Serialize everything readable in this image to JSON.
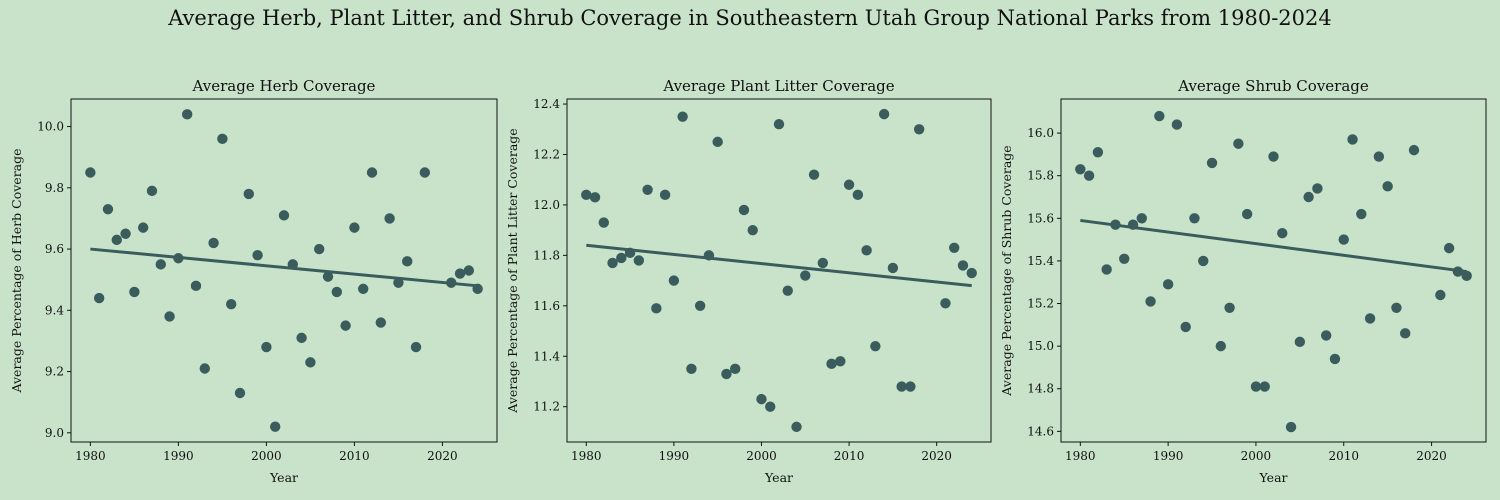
{
  "suptitle": "Average Herb, Plant Litter, and Shrub Coverage in Southeastern Utah Group National Parks from 1980-2024",
  "colors": {
    "background": "#c9e3cb",
    "marker": "#3a5c5c",
    "trend": "#3a5c5c",
    "axes": "#111111"
  },
  "chart_data": [
    {
      "type": "scatter",
      "title": "Average Herb Coverage",
      "xlabel": "Year",
      "ylabel": "Average Percentage of Herb Coverage",
      "xlim": [
        1977.8,
        2026.2
      ],
      "ylim": [
        8.97,
        10.09
      ],
      "xticks": [
        1980,
        1990,
        2000,
        2010,
        2020
      ],
      "yticks": [
        9.0,
        9.2,
        9.4,
        9.6,
        9.8,
        10.0
      ],
      "x": [
        1980,
        1981,
        1982,
        1983,
        1984,
        1985,
        1986,
        1987,
        1988,
        1989,
        1990,
        1991,
        1992,
        1993,
        1994,
        1995,
        1996,
        1997,
        1998,
        1999,
        2000,
        2001,
        2002,
        2003,
        2004,
        2005,
        2006,
        2007,
        2008,
        2009,
        2010,
        2011,
        2012,
        2013,
        2014,
        2015,
        2016,
        2017,
        2018,
        2021,
        2022,
        2023,
        2024
      ],
      "y": [
        9.85,
        9.44,
        9.73,
        9.63,
        9.65,
        9.46,
        9.67,
        9.79,
        9.55,
        9.38,
        9.57,
        10.04,
        9.48,
        9.21,
        9.62,
        9.96,
        9.42,
        9.13,
        9.78,
        9.58,
        9.28,
        9.02,
        9.71,
        9.55,
        9.31,
        9.23,
        9.6,
        9.51,
        9.46,
        9.35,
        9.67,
        9.47,
        9.85,
        9.36,
        9.7,
        9.49,
        9.56,
        9.28,
        9.85,
        9.49,
        9.52,
        9.53,
        9.47
      ],
      "trend": [
        [
          1980,
          9.6
        ],
        [
          2024,
          9.48
        ]
      ]
    },
    {
      "type": "scatter",
      "title": "Average Plant Litter Coverage",
      "xlabel": "Year",
      "ylabel": "Average Percentage of Plant Litter Coverage",
      "xlim": [
        1977.8,
        2026.2
      ],
      "ylim": [
        11.06,
        12.42
      ],
      "xticks": [
        1980,
        1990,
        2000,
        2010,
        2020
      ],
      "yticks": [
        11.2,
        11.4,
        11.6,
        11.8,
        12.0,
        12.2,
        12.4
      ],
      "x": [
        1980,
        1981,
        1982,
        1983,
        1984,
        1985,
        1986,
        1987,
        1988,
        1989,
        1990,
        1991,
        1992,
        1993,
        1994,
        1995,
        1996,
        1997,
        1998,
        1999,
        2000,
        2001,
        2002,
        2003,
        2004,
        2005,
        2006,
        2007,
        2008,
        2009,
        2010,
        2011,
        2012,
        2013,
        2014,
        2015,
        2016,
        2017,
        2018,
        2021,
        2022,
        2023,
        2024
      ],
      "y": [
        12.04,
        12.03,
        11.93,
        11.77,
        11.79,
        11.81,
        11.78,
        12.06,
        11.59,
        12.04,
        11.7,
        12.35,
        11.35,
        11.6,
        11.8,
        12.25,
        11.33,
        11.35,
        11.98,
        11.9,
        11.23,
        11.2,
        12.32,
        11.66,
        11.12,
        11.72,
        12.12,
        11.77,
        11.37,
        11.38,
        12.08,
        12.04,
        11.82,
        11.44,
        12.36,
        11.75,
        11.28,
        11.28,
        12.3,
        11.61,
        11.83,
        11.76,
        11.73
      ],
      "trend": [
        [
          1980,
          11.84
        ],
        [
          2024,
          11.68
        ]
      ]
    },
    {
      "type": "scatter",
      "title": "Average Shrub Coverage",
      "xlabel": "Year",
      "ylabel": "Average Percentage of Shrub Coverage",
      "xlim": [
        1977.8,
        2026.2
      ],
      "ylim": [
        14.55,
        16.16
      ],
      "xticks": [
        1980,
        1990,
        2000,
        2010,
        2020
      ],
      "yticks": [
        14.6,
        14.8,
        15.0,
        15.2,
        15.4,
        15.6,
        15.8,
        16.0
      ],
      "x": [
        1980,
        1981,
        1982,
        1983,
        1984,
        1985,
        1986,
        1987,
        1988,
        1989,
        1990,
        1991,
        1992,
        1993,
        1994,
        1995,
        1996,
        1997,
        1998,
        1999,
        2000,
        2001,
        2002,
        2003,
        2004,
        2005,
        2006,
        2007,
        2008,
        2009,
        2010,
        2011,
        2012,
        2013,
        2014,
        2015,
        2016,
        2017,
        2018,
        2021,
        2022,
        2023,
        2024
      ],
      "y": [
        15.83,
        15.8,
        15.91,
        15.36,
        15.57,
        15.41,
        15.57,
        15.6,
        15.21,
        16.08,
        15.29,
        16.04,
        15.09,
        15.6,
        15.4,
        15.86,
        15.0,
        15.18,
        15.95,
        15.62,
        14.81,
        14.81,
        15.89,
        15.53,
        14.62,
        15.02,
        15.7,
        15.74,
        15.05,
        14.94,
        15.5,
        15.97,
        15.62,
        15.13,
        15.89,
        15.75,
        15.18,
        15.06,
        15.92,
        15.24,
        15.46,
        15.35,
        15.33
      ],
      "trend": [
        [
          1980,
          15.59
        ],
        [
          2024,
          15.35
        ]
      ]
    }
  ]
}
